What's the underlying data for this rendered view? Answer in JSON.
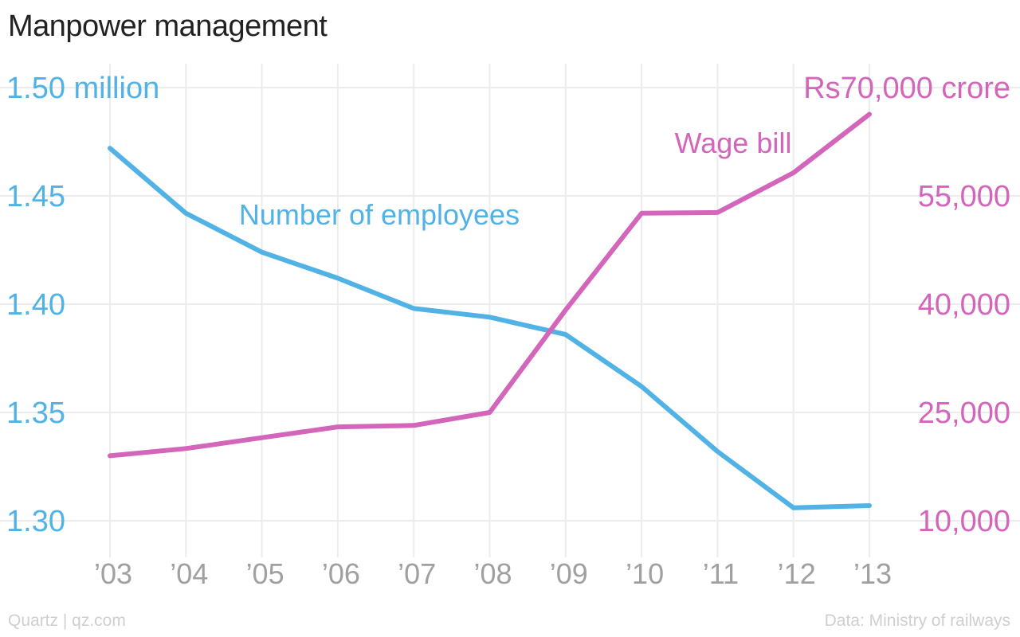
{
  "chart_data": {
    "type": "line",
    "title": "Manpower management",
    "categories": [
      "’03",
      "’04",
      "’05",
      "’06",
      "’07",
      "’08",
      "’09",
      "’10",
      "’11",
      "’12",
      "’13"
    ],
    "y_left": {
      "ticks": [
        1.3,
        1.35,
        1.4,
        1.45,
        1.5
      ],
      "tick_labels": [
        "1.30",
        "1.35",
        "1.40",
        "1.45",
        "1.50 million"
      ],
      "range": [
        1.3,
        1.5
      ]
    },
    "y_right": {
      "ticks": [
        10000,
        25000,
        40000,
        55000,
        70000
      ],
      "tick_labels": [
        "10,000",
        "25,000",
        "40,000",
        "55,000",
        "Rs70,000 crore"
      ],
      "range": [
        10000,
        70000
      ]
    },
    "series": [
      {
        "name": "Number of employees",
        "axis": "left",
        "color": "#51b2e5",
        "values": [
          1.472,
          1.442,
          1.424,
          1.412,
          1.398,
          1.394,
          1.386,
          1.362,
          1.332,
          1.306,
          1.307
        ]
      },
      {
        "name": "Wage bill",
        "axis": "right",
        "color": "#d365ba",
        "values": [
          19000,
          20000,
          21500,
          23000,
          23200,
          25000,
          39200,
          52600,
          52700,
          58200,
          66300
        ]
      }
    ],
    "grid": true,
    "legend": "inline labels"
  },
  "footer": {
    "source_left": "Quartz | qz.com",
    "source_right": "Data: Ministry of railways"
  }
}
